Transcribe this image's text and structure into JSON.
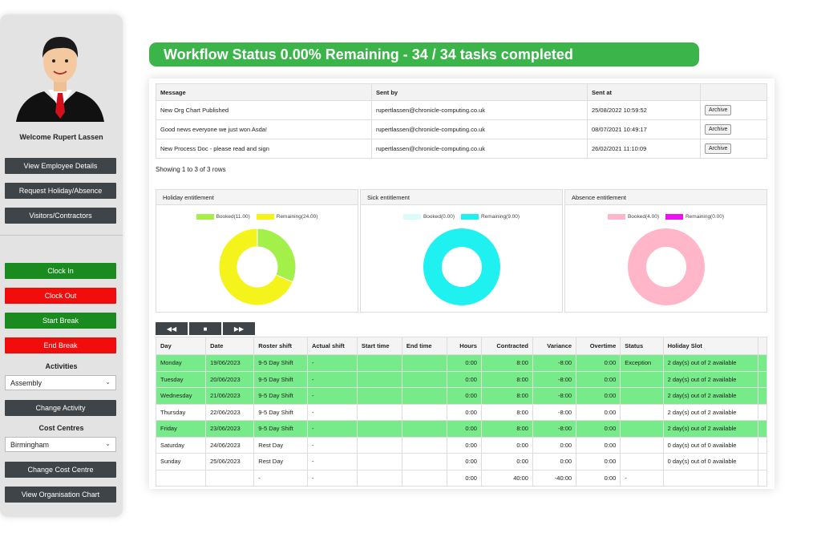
{
  "sidebar": {
    "welcome": "Welcome Rupert Lassen",
    "buttons": {
      "view_employee": "View Employee Details",
      "request_holiday": "Request Holiday/Absence",
      "visitors": "Visitors/Contractors",
      "clock_in": "Clock In",
      "clock_out": "Clock Out",
      "start_break": "Start Break",
      "end_break": "End Break",
      "change_activity": "Change Activity",
      "change_cost": "Change Cost Centre",
      "view_org": "View Organisation Chart"
    },
    "activities_label": "Activities",
    "activity_value": "Assembly",
    "cost_centres_label": "Cost Centres",
    "cost_value": "Birmingham"
  },
  "status_text": "Workflow Status 0.00% Remaining - 34 / 34 tasks completed",
  "messages": {
    "headers": [
      "Message",
      "Sent by",
      "Sent at",
      ""
    ],
    "rows": [
      {
        "message": "New Org Chart Published",
        "sent_by": "rupertlassen@chronicle-computing.co.uk",
        "sent_at": "25/08/2022 10:59:52",
        "action": "Archive"
      },
      {
        "message": "Good news everyone we just won Asda!",
        "sent_by": "rupertlassen@chronicle-computing.co.uk",
        "sent_at": "08/07/2021 10:49:17",
        "action": "Archive"
      },
      {
        "message": "New Process Doc - please read and sign",
        "sent_by": "rupertlassen@chronicle-computing.co.uk",
        "sent_at": "26/02/2021 11:10:09",
        "action": "Archive"
      }
    ],
    "showing": "Showing 1 to 3 of 3 rows"
  },
  "chart_data": [
    {
      "type": "pie",
      "title": "Holiday entitlement",
      "categories": [
        "Booked(11.00)",
        "Remaining(24.00)"
      ],
      "values": [
        11,
        24
      ],
      "colors": [
        "#a4f04a",
        "#f4f41c"
      ]
    },
    {
      "type": "pie",
      "title": "Sick entitlement",
      "categories": [
        "Booked(0.00)",
        "Remaining(9.00)"
      ],
      "values": [
        0,
        9
      ],
      "colors": [
        "#dcfbfb",
        "#1ff0f0"
      ]
    },
    {
      "type": "pie",
      "title": "Absence entitlement",
      "categories": [
        "Booked(4.00)",
        "Remaining(0.00)"
      ],
      "values": [
        4,
        0
      ],
      "colors": [
        "#ffb6c8",
        "#f00ff0"
      ]
    }
  ],
  "pager": {
    "prev": "◀◀",
    "stop": "■",
    "next": "▶▶"
  },
  "roster": {
    "headers": [
      "Day",
      "Date",
      "Roster shift",
      "Actual shift",
      "Start time",
      "End time",
      "Hours",
      "Contracted",
      "Variance",
      "Overtime",
      "Status",
      "Holiday Slot",
      ""
    ],
    "rows": [
      {
        "green": true,
        "cells": [
          "Monday",
          "19/06/2023",
          "9-5 Day Shift",
          "-",
          "",
          "",
          "0:00",
          "8:00",
          "-8:00",
          "0:00",
          "Exception",
          "2 day(s) out of 2 available",
          ""
        ]
      },
      {
        "green": true,
        "cells": [
          "Tuesday",
          "20/06/2023",
          "9-5 Day Shift",
          "-",
          "",
          "",
          "0:00",
          "8:00",
          "-8:00",
          "0:00",
          "",
          "2 day(s) out of 2 available",
          ""
        ]
      },
      {
        "green": true,
        "cells": [
          "Wednesday",
          "21/06/2023",
          "9-5 Day Shift",
          "-",
          "",
          "",
          "0:00",
          "8:00",
          "-8:00",
          "0:00",
          "",
          "2 day(s) out of 2 available",
          ""
        ]
      },
      {
        "green": false,
        "cells": [
          "Thursday",
          "22/06/2023",
          "9-5 Day Shift",
          "-",
          "",
          "",
          "0:00",
          "8:00",
          "-8:00",
          "0:00",
          "",
          "2 day(s) out of 2 available",
          ""
        ]
      },
      {
        "green": true,
        "cells": [
          "Friday",
          "23/06/2023",
          "9-5 Day Shift",
          "-",
          "",
          "",
          "0:00",
          "8:00",
          "-8:00",
          "0:00",
          "",
          "2 day(s) out of 2 available",
          ""
        ]
      },
      {
        "green": false,
        "cells": [
          "Saturday",
          "24/06/2023",
          "Rest Day",
          "-",
          "",
          "",
          "0:00",
          "0:00",
          "0:00",
          "0:00",
          "",
          "0 day(s) out of 0 available",
          ""
        ]
      },
      {
        "green": false,
        "cells": [
          "Sunday",
          "25/06/2023",
          "Rest Day",
          "-",
          "",
          "",
          "0:00",
          "0:00",
          "0:00",
          "0:00",
          "",
          "0 day(s) out of 0 available",
          ""
        ]
      },
      {
        "green": false,
        "cells": [
          "",
          "",
          "-",
          "-",
          "",
          "",
          "0:00",
          "40:00",
          "-40:00",
          "0:00",
          "-",
          "",
          ""
        ]
      }
    ]
  }
}
